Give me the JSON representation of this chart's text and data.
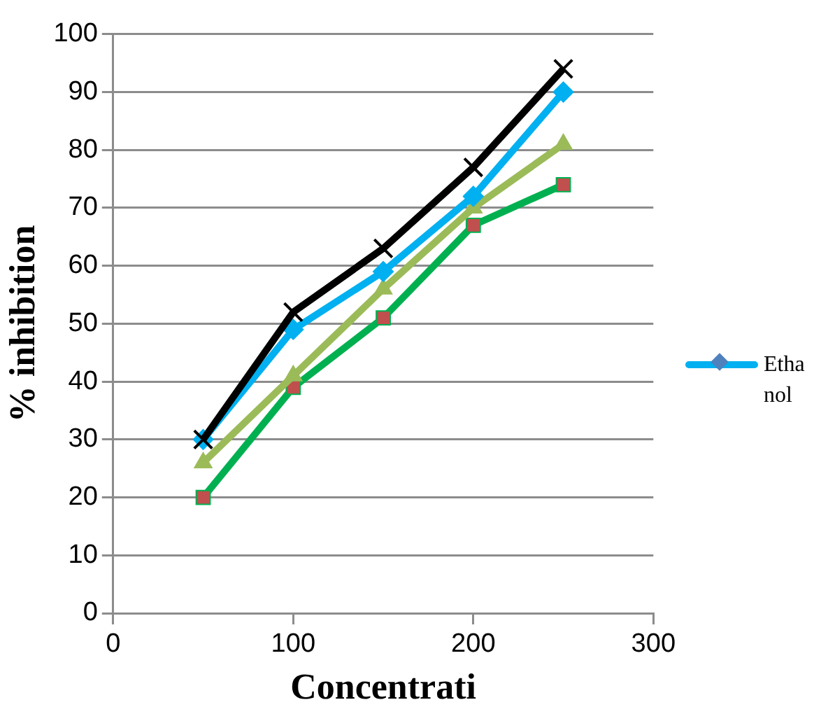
{
  "chart_data": {
    "type": "line",
    "xlabel": "Concentrati",
    "ylabel": "% inhibition",
    "x": [
      50,
      100,
      150,
      200,
      250
    ],
    "xlim": [
      0,
      300
    ],
    "xticks": [
      0,
      100,
      200,
      300
    ],
    "ylim": [
      0,
      100
    ],
    "yticks": [
      0,
      10,
      20,
      30,
      40,
      50,
      60,
      70,
      80,
      90,
      100
    ],
    "grid": "y",
    "legend": "right",
    "series": [
      {
        "color": "#000000",
        "marker": "cross",
        "values": [
          30,
          52,
          63,
          77,
          94
        ]
      },
      {
        "name": "Ethanol",
        "color": "#00b0f0",
        "marker": "diamond",
        "values": [
          30,
          49,
          59,
          72,
          90
        ]
      },
      {
        "color": "#9bbb59",
        "marker": "triangle",
        "values": [
          26,
          41,
          56,
          70,
          81
        ]
      },
      {
        "color": "#00b050",
        "colors": [
          "#c0504d",
          "#c0504d",
          "#c0504d",
          "#c0504d",
          "#c0504d"
        ],
        "marker": "square",
        "values": [
          20,
          39,
          51,
          67,
          74
        ]
      }
    ]
  }
}
